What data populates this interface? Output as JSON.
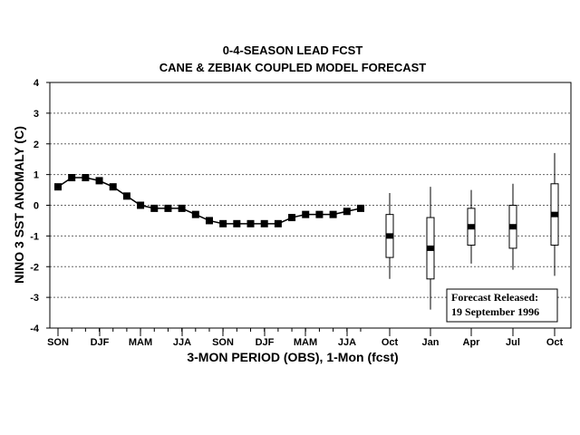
{
  "chart_data": {
    "type": "line",
    "title": "0-4-SEASON LEAD FCST",
    "subtitle": "CANE & ZEBIAK COUPLED MODEL FORECAST",
    "xlabel": "3-MON PERIOD (OBS), 1-Mon (fcst)",
    "ylabel": "NINO 3 SST ANOMALY (C)",
    "ylim": [
      -4,
      4
    ],
    "yticks": [
      4,
      3,
      2,
      1,
      0,
      -1,
      -2,
      -3,
      -4
    ],
    "grid": "horizontal dashed",
    "x_tick_labels": [
      "SON",
      "DJF",
      "MAM",
      "JJA",
      "SON",
      "DJF",
      "MAM",
      "JJA",
      "Oct",
      "Jan",
      "Apr",
      "Jul",
      "Oct"
    ],
    "observed": {
      "values": [
        0.6,
        0.9,
        0.9,
        0.8,
        0.6,
        0.3,
        0.0,
        -0.1,
        -0.1,
        -0.1,
        -0.3,
        -0.5,
        -0.6,
        -0.6,
        -0.6,
        -0.6,
        -0.6,
        -0.4,
        -0.3,
        -0.3,
        -0.3,
        -0.2,
        -0.1
      ]
    },
    "forecast": [
      {
        "label": "Oct",
        "median": -1.0,
        "q1": -1.7,
        "q3": -0.3,
        "min": -2.4,
        "max": 0.4
      },
      {
        "label": "Jan",
        "median": -1.4,
        "q1": -2.4,
        "q3": -0.4,
        "min": -3.4,
        "max": 0.6
      },
      {
        "label": "Apr",
        "median": -0.7,
        "q1": -1.3,
        "q3": -0.1,
        "min": -1.9,
        "max": 0.5
      },
      {
        "label": "Jul",
        "median": -0.7,
        "q1": -1.4,
        "q3": 0.0,
        "min": -2.1,
        "max": 0.7
      },
      {
        "label": "Oct",
        "median": -0.3,
        "q1": -1.3,
        "q3": 0.7,
        "min": -2.3,
        "max": 1.7
      }
    ],
    "annotation": [
      "Forecast Released:",
      "19 September 1996"
    ]
  }
}
